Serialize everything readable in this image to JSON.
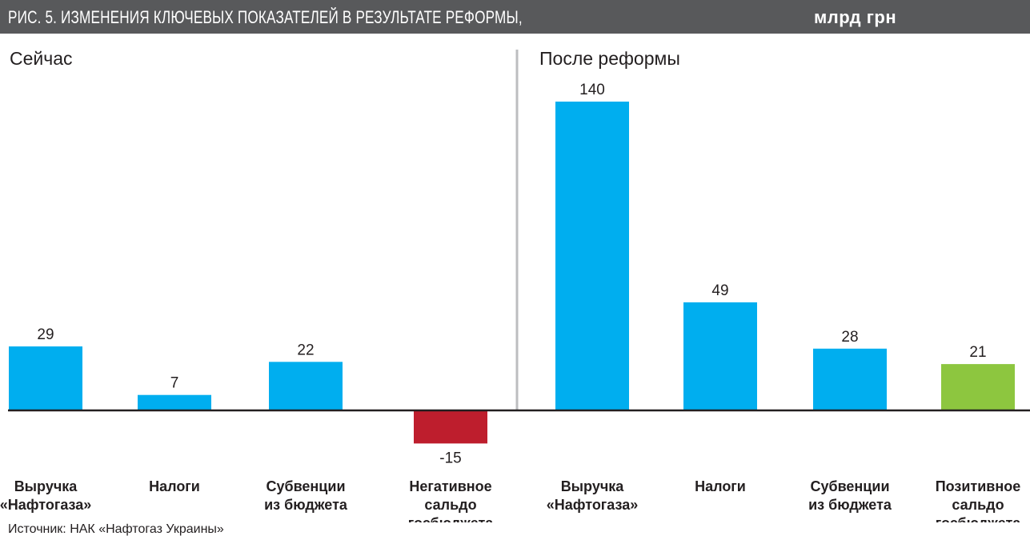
{
  "header": {
    "title": "РИС. 5. ИЗМЕНЕНИЯ КЛЮЧЕВЫХ ПОКАЗАТЕЛЕЙ В РЕЗУЛЬТАТЕ РЕФОРМЫ,",
    "unit": "млрд грн"
  },
  "source": "Источник: НАК «Нафтогаз Украины»",
  "colors": {
    "header_bg": "#58595b",
    "positive_bar": "#00aeef",
    "negative_bar": "#be1e2d",
    "surplus_bar": "#8dc63f",
    "axis": "#231f20",
    "divider": "#bcbec0"
  },
  "chart_data": [
    {
      "type": "bar",
      "title": "Сейчас",
      "categories": [
        "Выручка «Нафтогаза»",
        "Налоги",
        "Субвенции из бюджета",
        "Негативное сальдо госбюджета"
      ],
      "category_lines": [
        [
          "Выручка",
          "«Нафтогаза»"
        ],
        [
          "Налоги"
        ],
        [
          "Субвенции",
          "из бюджета"
        ],
        [
          "Негативное",
          "сальдо",
          "госбюджета"
        ]
      ],
      "values": [
        29,
        7,
        22,
        -15
      ],
      "bar_colors": [
        "#00aeef",
        "#00aeef",
        "#00aeef",
        "#be1e2d"
      ],
      "data_labels": [
        "29",
        "7",
        "22",
        "-15"
      ]
    },
    {
      "type": "bar",
      "title": "После реформы",
      "categories": [
        "Выручка «Нафтогаза»",
        "Налоги",
        "Субвенции из бюджета",
        "Позитивное сальдо госбюджета"
      ],
      "category_lines": [
        [
          "Выручка",
          "«Нафтогаза»"
        ],
        [
          "Налоги"
        ],
        [
          "Субвенции",
          "из бюджета"
        ],
        [
          "Позитивное",
          "сальдо",
          "госбюджета"
        ]
      ],
      "values": [
        140,
        49,
        28,
        21
      ],
      "bar_colors": [
        "#00aeef",
        "#00aeef",
        "#00aeef",
        "#8dc63f"
      ],
      "data_labels": [
        "140",
        "49",
        "28",
        "21"
      ]
    }
  ]
}
